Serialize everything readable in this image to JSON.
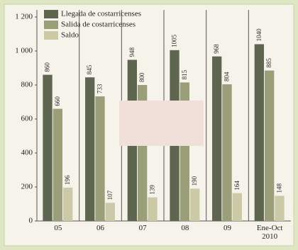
{
  "chart_data": {
    "type": "bar",
    "categories": [
      "05",
      "06",
      "07",
      "08",
      "09",
      "Ene-Oct 2010"
    ],
    "series": [
      {
        "name": "Llegada de costarricenses",
        "color": "#5f6650",
        "values": [
          860,
          845,
          948,
          1005,
          968,
          1040
        ]
      },
      {
        "name": "Salida de costarricenses",
        "color": "#9a9e79",
        "values": [
          660,
          733,
          800,
          815,
          804,
          885
        ]
      },
      {
        "name": "Saldo",
        "color": "#cccaa6",
        "values": [
          196,
          107,
          139,
          190,
          164,
          148
        ]
      }
    ],
    "ylim": [
      0,
      1200
    ],
    "yticks": [
      0,
      200,
      400,
      600,
      800,
      {
        "value": 1000,
        "label": "1 000"
      },
      {
        "value": 1200,
        "label": "1 200"
      }
    ]
  }
}
